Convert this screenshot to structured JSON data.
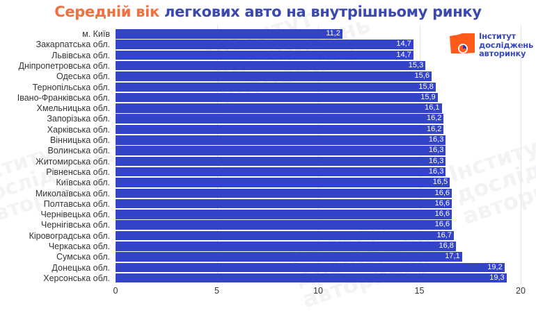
{
  "header": {
    "title_accent": "Середній вік",
    "title_rest": "легкових авто на внутрішньому ринку"
  },
  "logo": {
    "line1": "Інститут",
    "line2": "досліджень",
    "line3": "авторинку",
    "color": "#ff5a1a",
    "text_color": "#3a48c0"
  },
  "colors": {
    "bar": "#3344c8",
    "title_accent": "#f07040",
    "title_rest": "#3a48b0"
  },
  "chart_data": {
    "type": "bar",
    "orientation": "horizontal",
    "title": "Середній вік легкових авто на внутрішньому ринку",
    "xlabel": "",
    "ylabel": "",
    "xlim": [
      0,
      20
    ],
    "x_ticks": [
      "0",
      "5",
      "10",
      "15",
      "20"
    ],
    "grid": true,
    "legend": null,
    "categories": [
      "м. Київ",
      "Закарпатська обл.",
      "Львівська обл.",
      "Дніпропетровська обл.",
      "Одеська обл.",
      "Тернопільська обл.",
      "Івано-Франківська обл.",
      "Хмельницька обл.",
      "Запорізька обл.",
      "Харківська обл.",
      "Вінницька обл.",
      "Волинська обл.",
      "Житомирська обл.",
      "Рівненська обл.",
      "Київська обл.",
      "Миколаївська обл.",
      "Полтавська обл.",
      "Чернівецька обл.",
      "Чернігівська обл.",
      "Кіровоградська обл.",
      "Черкаська обл.",
      "Сумська обл.",
      "Донецька обл.",
      "Херсонська обл."
    ],
    "values": [
      11.2,
      14.7,
      14.7,
      15.3,
      15.6,
      15.8,
      15.9,
      16.1,
      16.2,
      16.2,
      16.3,
      16.3,
      16.3,
      16.3,
      16.5,
      16.6,
      16.6,
      16.6,
      16.6,
      16.7,
      16.8,
      17.1,
      19.2,
      19.3
    ],
    "value_labels": [
      "11,2",
      "14,7",
      "14,7",
      "15,3",
      "15,6",
      "15,8",
      "15,9",
      "16,1",
      "16,2",
      "16,2",
      "16,3",
      "16,3",
      "16,3",
      "16,3",
      "16,5",
      "16,6",
      "16,6",
      "16,6",
      "16,6",
      "16,7",
      "16,8",
      "17,1",
      "19,2",
      "19,3"
    ]
  }
}
